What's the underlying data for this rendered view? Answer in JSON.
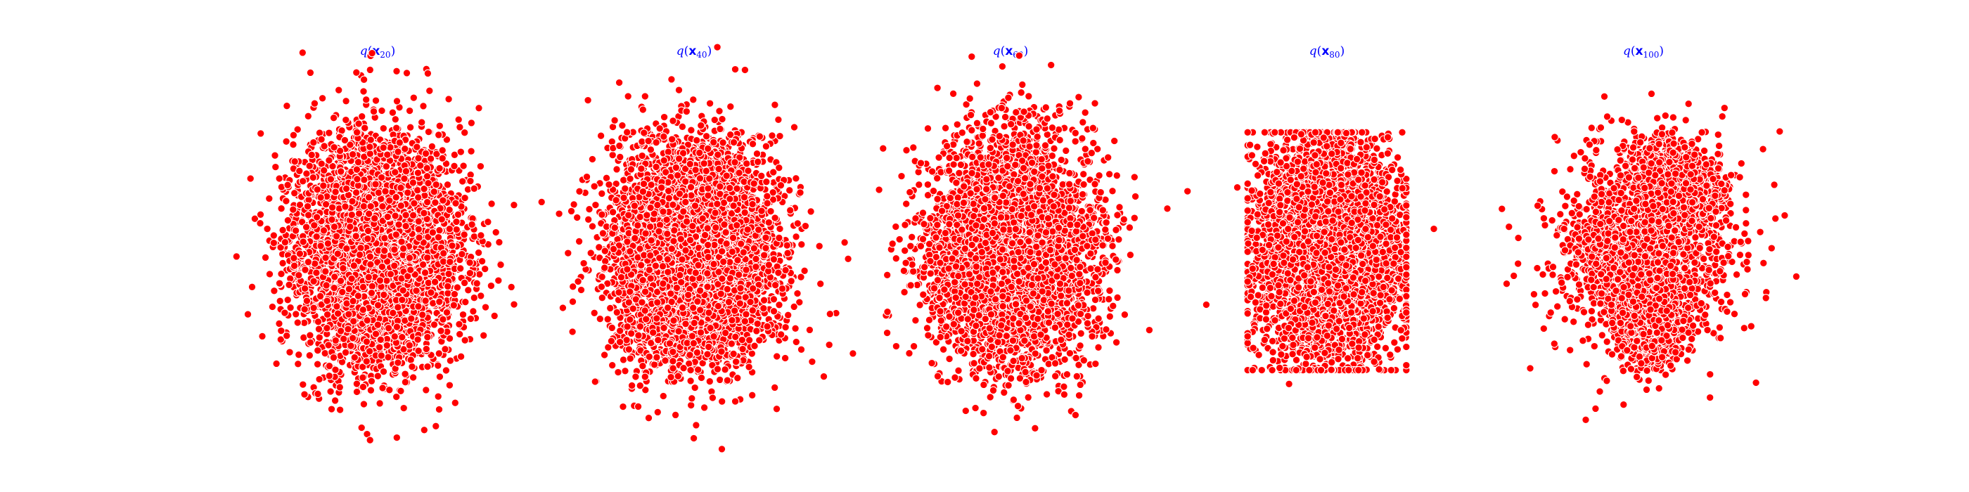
{
  "figure": {
    "background": "#ffffff",
    "point_color": "#ff0000",
    "point_edge_color": "#ffffff",
    "title_color": "#0000ff"
  },
  "chart_data": [
    {
      "type": "scatter",
      "title": "q(x20)",
      "title_parts": {
        "fn": "q",
        "var": "x",
        "sub": "20"
      },
      "xlim": [
        -2.6,
        2.6
      ],
      "ylim": [
        -2.6,
        2.6
      ],
      "axis_visible": false,
      "grid": false,
      "shape": "gaussian",
      "spread_x": 0.58,
      "spread_y": 0.8,
      "n_points": 5000,
      "seed": 20,
      "outliers": [
        [
          -1.6,
          0.3
        ],
        [
          1.6,
          0.4
        ],
        [
          -1.5,
          -0.6
        ],
        [
          1.4,
          -0.7
        ],
        [
          -0.3,
          1.7
        ],
        [
          0.5,
          -1.7
        ]
      ]
    },
    {
      "type": "scatter",
      "title": "q(x40)",
      "title_parts": {
        "fn": "q",
        "var": "x",
        "sub": "40"
      },
      "xlim": [
        -2.6,
        2.6
      ],
      "ylim": [
        -2.6,
        2.6
      ],
      "axis_visible": false,
      "grid": false,
      "shape": "gaussian",
      "spread_x": 0.58,
      "spread_y": 0.8,
      "n_points": 5000,
      "seed": 40,
      "outliers": [
        [
          -1.6,
          -0.2
        ],
        [
          1.55,
          -0.4
        ],
        [
          -1.35,
          1.65
        ],
        [
          1.2,
          -1.55
        ],
        [
          0.1,
          1.8
        ],
        [
          -0.05,
          -1.75
        ]
      ]
    },
    {
      "type": "scatter",
      "title": "q(x60)",
      "title_parts": {
        "fn": "q",
        "var": "x",
        "sub": "60"
      },
      "xlim": [
        -2.6,
        2.6
      ],
      "ylim": [
        -2.6,
        2.6
      ],
      "axis_visible": false,
      "grid": false,
      "shape": "gaussian",
      "spread_x": 0.58,
      "spread_y": 0.8,
      "n_points": 5000,
      "seed": 60,
      "outliers": [
        [
          -1.45,
          0.05
        ],
        [
          1.55,
          0.5
        ],
        [
          1.55,
          -0.3
        ],
        [
          -0.4,
          1.75
        ],
        [
          0.45,
          -1.75
        ]
      ]
    },
    {
      "type": "scatter",
      "title": "q(x80)",
      "title_parts": {
        "fn": "q",
        "var": "x",
        "sub": "80"
      },
      "xlim": [
        -2.6,
        2.6
      ],
      "ylim": [
        -2.6,
        2.6
      ],
      "axis_visible": false,
      "grid": false,
      "shape": "blob_soft",
      "spread_x": 0.5,
      "spread_y": 0.8,
      "n_points": 5000,
      "seed": 80,
      "outliers": [
        [
          -1.75,
          -0.8
        ],
        [
          -1.3,
          0.9
        ],
        [
          -0.55,
          -1.95
        ],
        [
          1.55,
          0.3
        ]
      ]
    },
    {
      "type": "scatter",
      "title": "q(x100)",
      "title_parts": {
        "fn": "q",
        "var": "x",
        "sub": "100"
      },
      "xlim": [
        -2.6,
        2.6
      ],
      "ylim": [
        -2.6,
        2.6
      ],
      "axis_visible": false,
      "grid": false,
      "shape": "s_curve",
      "n_points": 5000,
      "seed": 100,
      "outliers": [
        [
          -1.15,
          0.3
        ],
        [
          1.05,
          0.55
        ],
        [
          -1.1,
          -0.4
        ]
      ]
    }
  ]
}
